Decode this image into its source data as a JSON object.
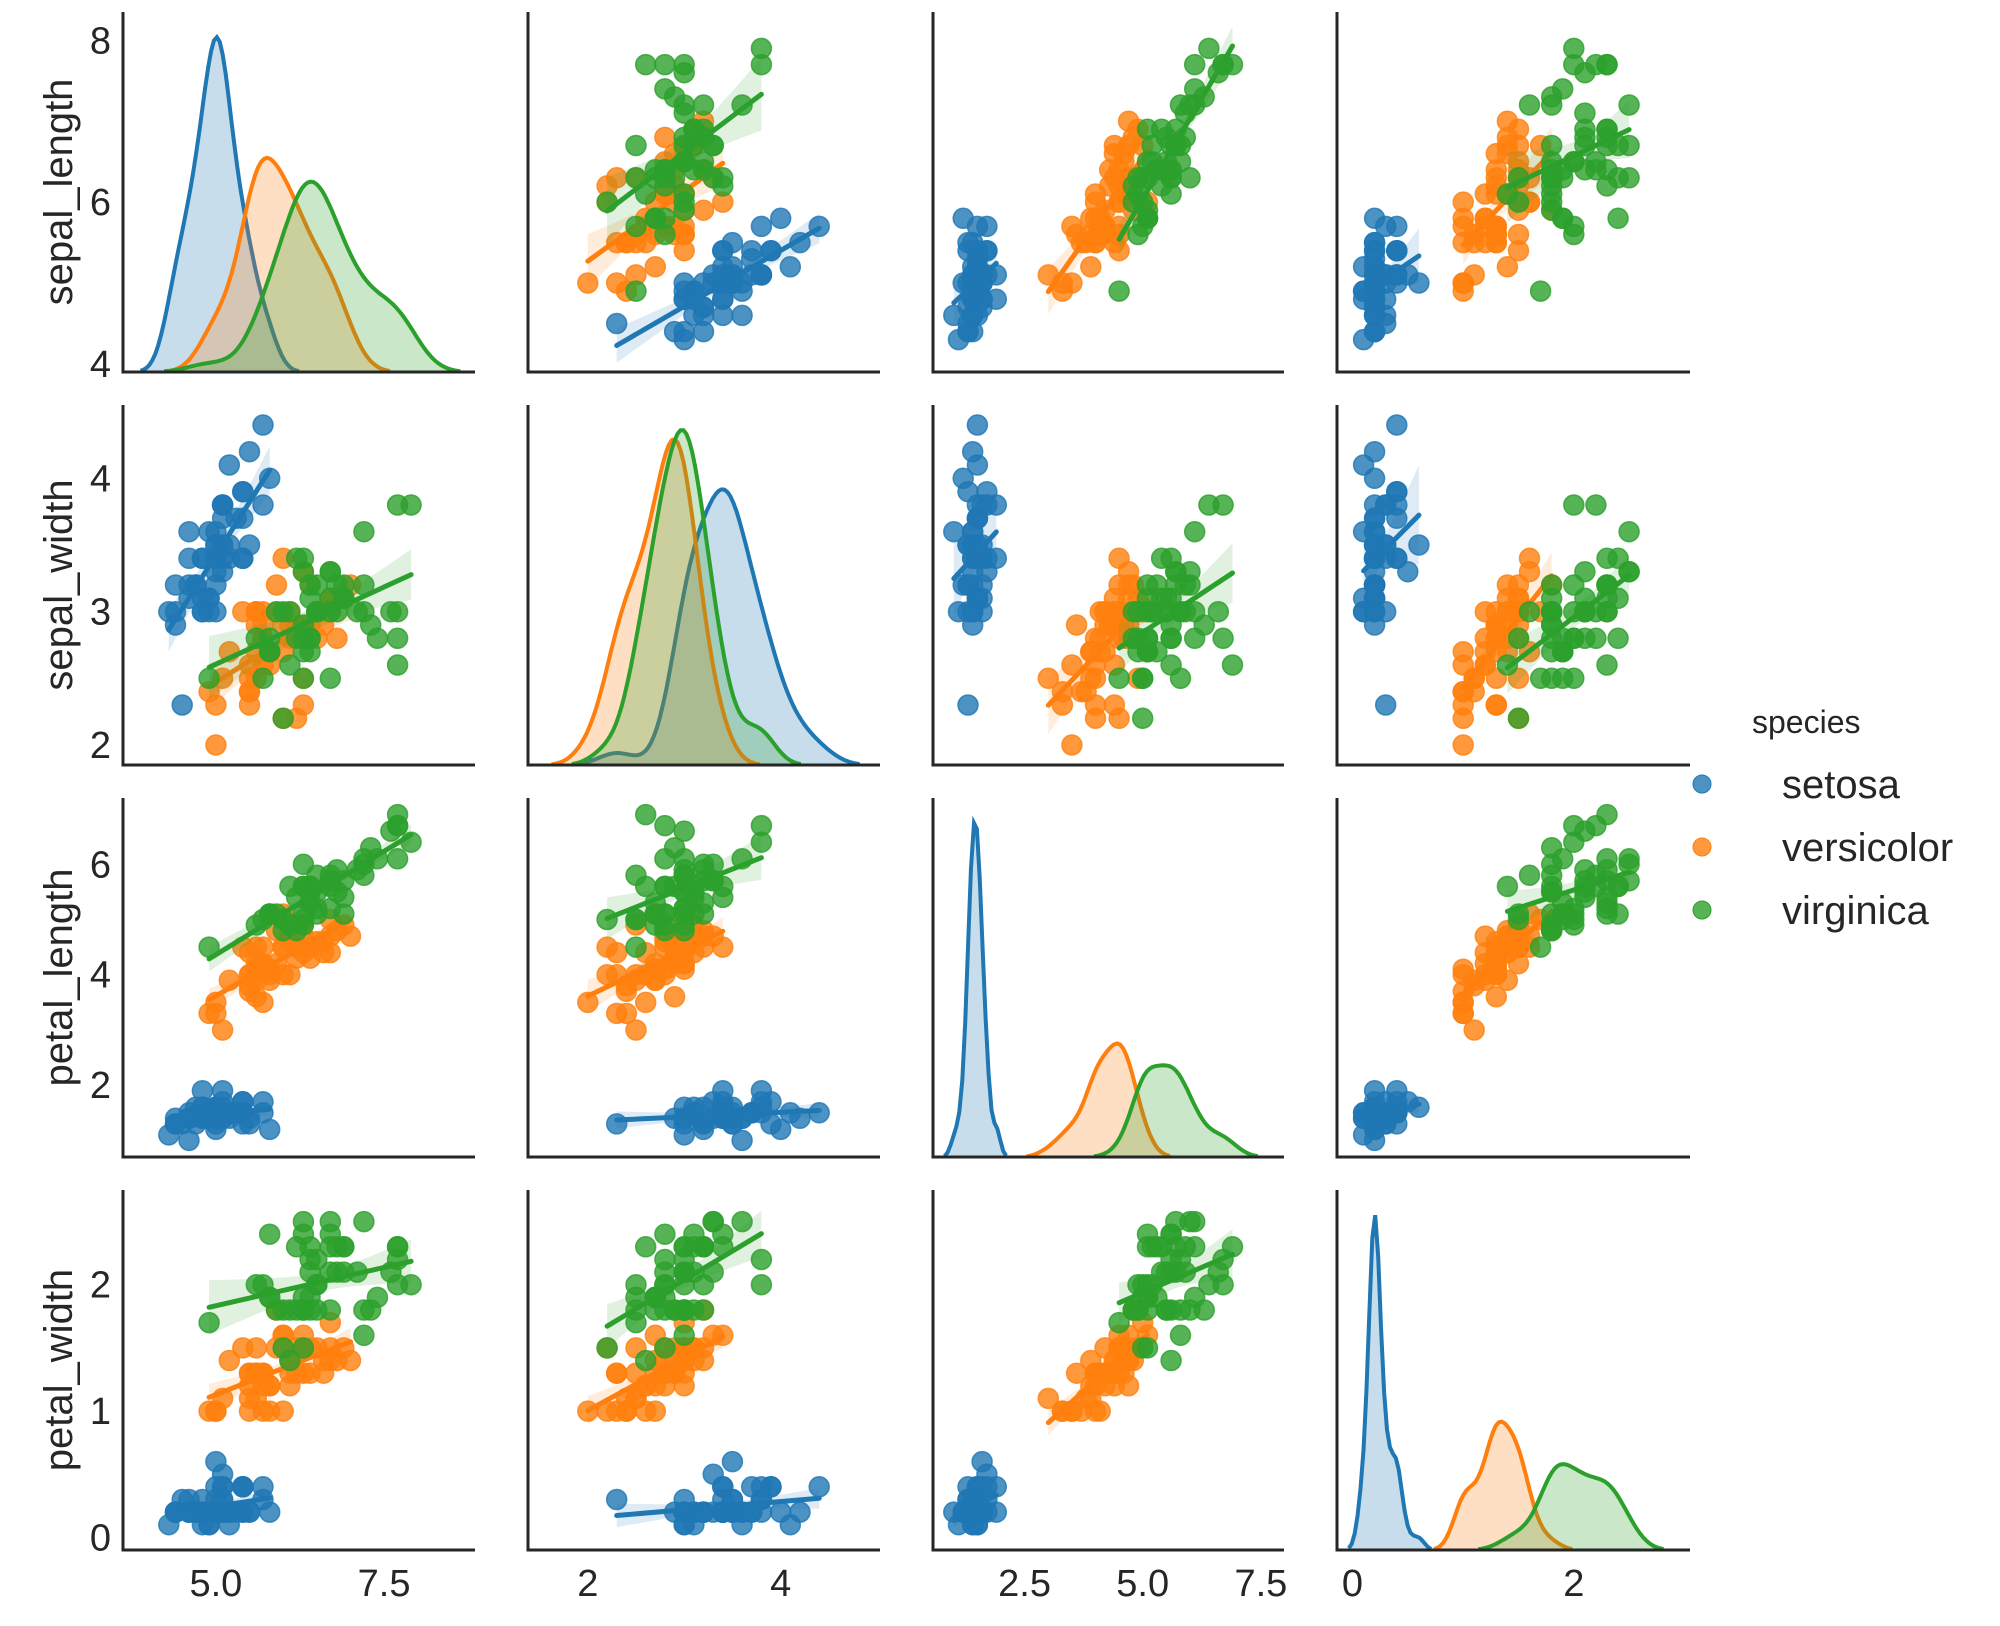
{
  "chart_data": {
    "type": "scatter",
    "title": "",
    "kind": "pairplot (regression scatter off-diagonal, KDE on diagonal)",
    "variables": [
      "sepal_length",
      "sepal_width",
      "petal_length",
      "petal_width"
    ],
    "axis_ranges": {
      "sepal_length": [
        3.62,
        8.85
      ],
      "sepal_width": [
        1.38,
        5.03
      ],
      "petal_length": [
        0.56,
        7.99
      ],
      "petal_width": [
        -0.14,
        3.05
      ]
    },
    "row_ranges": {
      "sepal_length": [
        3.9,
        8.35
      ],
      "sepal_width": [
        1.85,
        4.55
      ],
      "petal_length": [
        0.7,
        7.2
      ],
      "petal_width": [
        -0.1,
        2.75
      ]
    },
    "x_ticks": {
      "sepal_length": [
        "5.0",
        "7.5"
      ],
      "sepal_width": [
        "2",
        "4"
      ],
      "petal_length": [
        "2.5",
        "5.0",
        "7.5"
      ],
      "petal_width": [
        "0",
        "2"
      ]
    },
    "y_ticks": {
      "sepal_length": [
        "4",
        "6",
        "8"
      ],
      "sepal_width": [
        "2",
        "3",
        "4"
      ],
      "petal_length": [
        "2",
        "4",
        "6"
      ],
      "petal_width": [
        "0",
        "1",
        "2"
      ]
    },
    "legend": {
      "title": "species",
      "placement": "center-right",
      "entries": [
        "setosa",
        "versicolor",
        "virginica"
      ]
    },
    "grid": false,
    "series": [
      {
        "name": "setosa",
        "color": "#1f77b4",
        "sepal_length": [
          5.1,
          4.9,
          4.7,
          4.6,
          5.0,
          5.4,
          4.6,
          5.0,
          4.4,
          4.9,
          5.4,
          4.8,
          4.8,
          4.3,
          5.8,
          5.7,
          5.4,
          5.1,
          5.7,
          5.1,
          5.4,
          5.1,
          4.6,
          5.1,
          4.8,
          5.0,
          5.0,
          5.2,
          5.2,
          4.7,
          4.8,
          5.4,
          5.2,
          5.5,
          4.9,
          5.0,
          5.5,
          4.9,
          4.4,
          5.1,
          5.0,
          4.5,
          4.4,
          5.0,
          5.1,
          4.8,
          5.1,
          4.6,
          5.3,
          5.0
        ],
        "sepal_width": [
          3.5,
          3.0,
          3.2,
          3.1,
          3.6,
          3.9,
          3.4,
          3.4,
          2.9,
          3.1,
          3.7,
          3.4,
          3.0,
          3.0,
          4.0,
          4.4,
          3.9,
          3.5,
          3.8,
          3.8,
          3.4,
          3.7,
          3.6,
          3.3,
          3.4,
          3.0,
          3.4,
          3.5,
          3.4,
          3.2,
          3.1,
          3.4,
          4.1,
          4.2,
          3.1,
          3.2,
          3.5,
          3.6,
          3.0,
          3.4,
          3.5,
          2.3,
          3.2,
          3.5,
          3.8,
          3.0,
          3.8,
          3.2,
          3.7,
          3.3
        ],
        "petal_length": [
          1.4,
          1.4,
          1.3,
          1.5,
          1.4,
          1.7,
          1.4,
          1.5,
          1.4,
          1.5,
          1.5,
          1.6,
          1.4,
          1.1,
          1.2,
          1.5,
          1.3,
          1.4,
          1.7,
          1.5,
          1.7,
          1.5,
          1.0,
          1.7,
          1.9,
          1.6,
          1.6,
          1.5,
          1.4,
          1.6,
          1.6,
          1.5,
          1.5,
          1.4,
          1.5,
          1.2,
          1.3,
          1.4,
          1.3,
          1.5,
          1.3,
          1.3,
          1.3,
          1.6,
          1.9,
          1.4,
          1.6,
          1.4,
          1.5,
          1.4
        ],
        "petal_width": [
          0.2,
          0.2,
          0.2,
          0.2,
          0.2,
          0.4,
          0.3,
          0.2,
          0.2,
          0.1,
          0.2,
          0.2,
          0.1,
          0.1,
          0.2,
          0.4,
          0.4,
          0.3,
          0.3,
          0.3,
          0.2,
          0.4,
          0.2,
          0.5,
          0.2,
          0.2,
          0.4,
          0.2,
          0.2,
          0.2,
          0.2,
          0.4,
          0.1,
          0.2,
          0.2,
          0.2,
          0.2,
          0.1,
          0.2,
          0.2,
          0.3,
          0.3,
          0.2,
          0.6,
          0.4,
          0.3,
          0.2,
          0.2,
          0.2,
          0.2
        ]
      },
      {
        "name": "versicolor",
        "color": "#ff7f0e",
        "sepal_length": [
          7.0,
          6.4,
          6.9,
          5.5,
          6.5,
          5.7,
          6.3,
          4.9,
          6.6,
          5.2,
          5.0,
          5.9,
          6.0,
          6.1,
          5.6,
          6.7,
          5.6,
          5.8,
          6.2,
          5.6,
          5.9,
          6.1,
          6.3,
          6.1,
          6.4,
          6.6,
          6.8,
          6.7,
          6.0,
          5.7,
          5.5,
          5.5,
          5.8,
          6.0,
          5.4,
          6.0,
          6.7,
          6.3,
          5.6,
          5.5,
          5.5,
          6.1,
          5.8,
          5.0,
          5.6,
          5.7,
          5.7,
          6.2,
          5.1,
          5.7
        ],
        "sepal_width": [
          3.2,
          3.2,
          3.1,
          2.3,
          2.8,
          2.8,
          3.3,
          2.4,
          2.9,
          2.7,
          2.0,
          3.0,
          2.2,
          2.9,
          2.9,
          3.1,
          3.0,
          2.7,
          2.2,
          2.5,
          3.2,
          2.8,
          2.5,
          2.8,
          2.9,
          3.0,
          2.8,
          3.0,
          2.9,
          2.6,
          2.4,
          2.4,
          2.7,
          2.7,
          3.0,
          3.4,
          3.1,
          2.3,
          3.0,
          2.5,
          2.6,
          3.0,
          2.6,
          2.3,
          2.7,
          3.0,
          2.9,
          2.9,
          2.5,
          2.8
        ],
        "petal_length": [
          4.7,
          4.5,
          4.9,
          4.0,
          4.6,
          4.5,
          4.7,
          3.3,
          4.6,
          3.9,
          3.5,
          4.2,
          4.0,
          4.7,
          3.6,
          4.4,
          4.5,
          4.1,
          4.5,
          3.9,
          4.8,
          4.0,
          4.9,
          4.7,
          4.3,
          4.4,
          4.8,
          5.0,
          4.5,
          3.5,
          3.8,
          3.7,
          3.9,
          5.1,
          4.5,
          4.5,
          4.7,
          4.4,
          4.1,
          4.0,
          4.4,
          4.6,
          4.0,
          3.3,
          4.2,
          4.2,
          4.2,
          4.3,
          3.0,
          4.1
        ],
        "petal_width": [
          1.4,
          1.5,
          1.5,
          1.3,
          1.5,
          1.3,
          1.6,
          1.0,
          1.3,
          1.4,
          1.0,
          1.5,
          1.0,
          1.4,
          1.3,
          1.4,
          1.5,
          1.0,
          1.5,
          1.1,
          1.8,
          1.3,
          1.5,
          1.2,
          1.3,
          1.4,
          1.4,
          1.7,
          1.5,
          1.0,
          1.1,
          1.0,
          1.2,
          1.6,
          1.5,
          1.6,
          1.5,
          1.3,
          1.3,
          1.3,
          1.2,
          1.4,
          1.2,
          1.0,
          1.3,
          1.2,
          1.3,
          1.3,
          1.1,
          1.3
        ]
      },
      {
        "name": "virginica",
        "color": "#2ca02c",
        "sepal_length": [
          6.3,
          5.8,
          7.1,
          6.3,
          6.5,
          7.6,
          4.9,
          7.3,
          6.7,
          7.2,
          6.5,
          6.4,
          6.8,
          5.7,
          5.8,
          6.4,
          6.5,
          7.7,
          7.7,
          6.0,
          6.9,
          5.6,
          7.7,
          6.3,
          6.7,
          7.2,
          6.2,
          6.1,
          6.4,
          7.2,
          7.4,
          7.9,
          6.4,
          6.3,
          6.1,
          7.7,
          6.3,
          6.4,
          6.0,
          6.9,
          6.7,
          6.9,
          5.8,
          6.8,
          6.7,
          6.7,
          6.3,
          6.5,
          6.2,
          5.9
        ],
        "sepal_width": [
          3.3,
          2.7,
          3.0,
          2.9,
          3.0,
          3.0,
          2.5,
          2.9,
          2.5,
          3.6,
          3.2,
          2.7,
          3.0,
          2.5,
          2.8,
          3.2,
          3.0,
          3.8,
          2.6,
          2.2,
          3.2,
          2.8,
          2.8,
          2.7,
          3.3,
          3.2,
          2.8,
          3.0,
          2.8,
          3.0,
          2.8,
          3.8,
          2.8,
          2.8,
          2.6,
          3.0,
          3.4,
          3.1,
          3.0,
          3.1,
          3.1,
          3.1,
          2.7,
          3.2,
          3.3,
          3.0,
          2.5,
          3.0,
          3.4,
          3.0
        ],
        "petal_length": [
          6.0,
          5.1,
          5.9,
          5.6,
          5.8,
          6.6,
          4.5,
          6.3,
          5.8,
          6.1,
          5.1,
          5.3,
          5.5,
          5.0,
          5.1,
          5.3,
          5.5,
          6.7,
          6.9,
          5.0,
          5.7,
          4.9,
          6.7,
          4.9,
          5.7,
          6.0,
          4.8,
          4.9,
          5.6,
          5.8,
          6.1,
          6.4,
          5.6,
          5.1,
          5.6,
          6.1,
          5.6,
          5.5,
          4.8,
          5.4,
          5.6,
          5.1,
          5.1,
          5.9,
          5.7,
          5.2,
          5.0,
          5.2,
          5.4,
          5.1
        ],
        "petal_width": [
          2.5,
          1.9,
          2.1,
          1.8,
          2.2,
          2.1,
          1.7,
          1.8,
          1.8,
          2.5,
          2.0,
          1.9,
          2.1,
          2.0,
          2.4,
          2.3,
          1.8,
          2.2,
          2.3,
          1.5,
          2.3,
          2.0,
          2.0,
          1.8,
          2.1,
          1.8,
          1.8,
          1.8,
          2.1,
          1.6,
          1.9,
          2.0,
          2.2,
          1.5,
          1.4,
          2.3,
          2.4,
          1.8,
          1.8,
          2.1,
          2.4,
          2.3,
          1.9,
          2.3,
          2.5,
          2.3,
          1.9,
          2.0,
          2.3,
          1.8
        ]
      }
    ]
  }
}
